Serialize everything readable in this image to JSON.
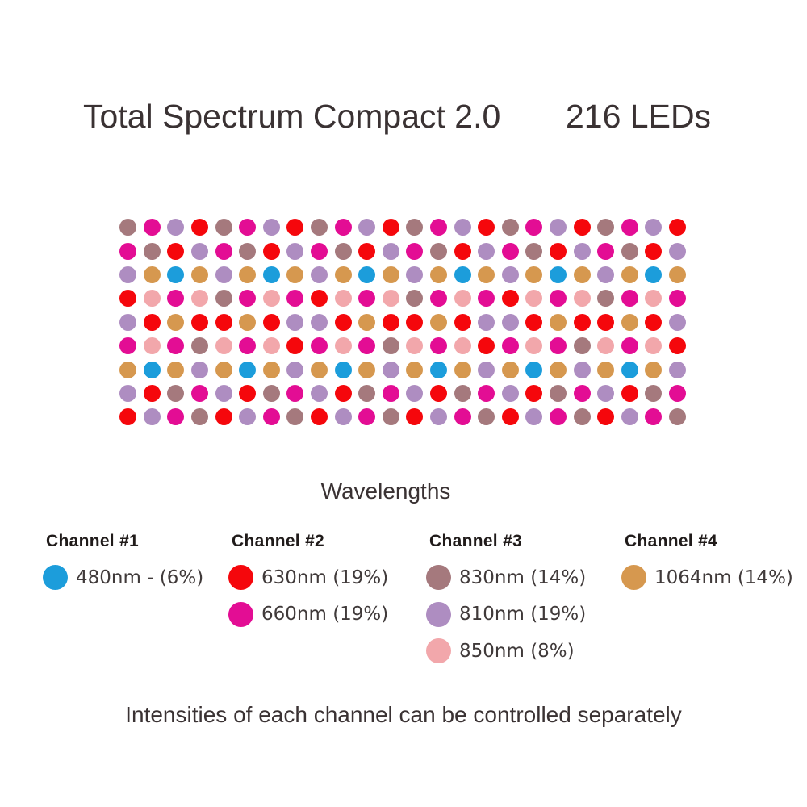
{
  "header": {
    "title": "Total Spectrum Compact 2.0",
    "led_count": "216 LEDs"
  },
  "grid": {
    "label": "Wavelengths",
    "columns": 24,
    "rows": 9,
    "palette": {
      "blue": "#1C9DDB",
      "red": "#F5070C",
      "magenta": "#E30D94",
      "mauve": "#A5797D",
      "lilac": "#AE8DC1",
      "pink": "#F2A7AB",
      "tan": "#D6984F"
    },
    "row_patterns": [
      [
        "mauve",
        "magenta",
        "lilac",
        "red"
      ],
      [
        "magenta",
        "mauve",
        "red",
        "lilac"
      ],
      [
        "lilac",
        "tan",
        "blue",
        "tan"
      ],
      [
        "red",
        "pink",
        "magenta",
        "pink",
        "mauve",
        "magenta",
        "pink",
        "magenta"
      ],
      [
        "lilac",
        "red",
        "tan",
        "red",
        "red",
        "tan",
        "red",
        "lilac"
      ],
      [
        "magenta",
        "pink",
        "magenta",
        "mauve",
        "pink",
        "magenta",
        "pink",
        "red"
      ],
      [
        "tan",
        "blue",
        "tan",
        "lilac"
      ],
      [
        "lilac",
        "red",
        "mauve",
        "magenta"
      ],
      [
        "red",
        "lilac",
        "magenta",
        "mauve"
      ]
    ]
  },
  "legend": {
    "channels": [
      {
        "title": "Channel #1",
        "entries": [
          {
            "color": "blue",
            "wavelength": "480nm",
            "intensity": "6%",
            "label": "480nm - (6%)"
          }
        ]
      },
      {
        "title": "Channel #2",
        "entries": [
          {
            "color": "red",
            "wavelength": "630nm",
            "intensity": "19%",
            "label": "630nm (19%)"
          },
          {
            "color": "magenta",
            "wavelength": "660nm",
            "intensity": "19%",
            "label": "660nm (19%)"
          }
        ]
      },
      {
        "title": "Channel #3",
        "entries": [
          {
            "color": "mauve",
            "wavelength": "830nm",
            "intensity": "14%",
            "label": "830nm (14%)"
          },
          {
            "color": "lilac",
            "wavelength": "810nm",
            "intensity": "19%",
            "label": "810nm (19%)"
          },
          {
            "color": "pink",
            "wavelength": "850nm",
            "intensity": "8%",
            "label": "850nm (8%)"
          }
        ]
      },
      {
        "title": "Channel #4",
        "entries": [
          {
            "color": "tan",
            "wavelength": "1064nm",
            "intensity": "14%",
            "label": "1064nm (14%)"
          }
        ]
      }
    ]
  },
  "footer": {
    "note": "Intensities of each channel can be controlled separately"
  }
}
